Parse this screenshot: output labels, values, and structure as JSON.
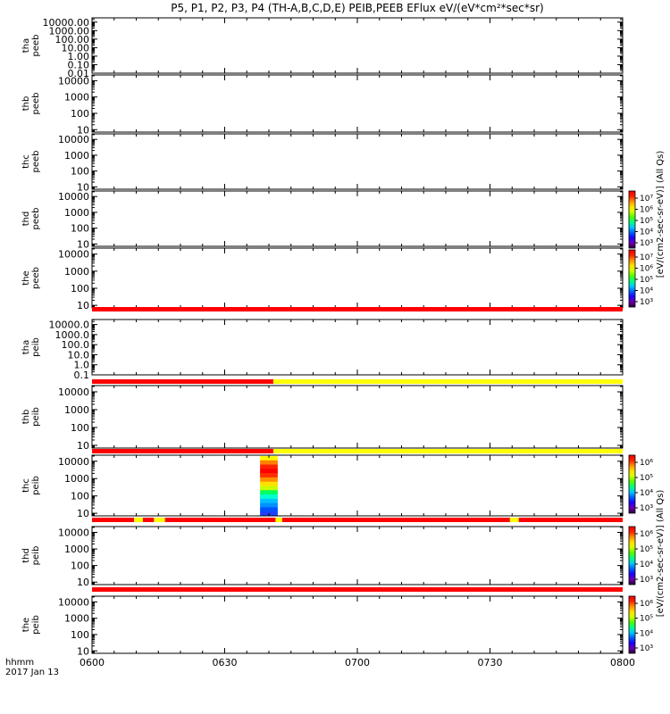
{
  "title": "P5, P1, P2, P3, P4 (TH-A,B,C,D,E) PEIB,PEEB EFlux eV/(eV*cm²*sec*sr)",
  "footer": {
    "line1": "hhmm",
    "line2": "2017 Jan 13"
  },
  "colors": {
    "bar_red": "#ff0000",
    "bar_yellow": "#ffff00",
    "colorbar": [
      "#2a0034",
      "#6a00b0",
      "#1a00ff",
      "#0060ff",
      "#00c8ff",
      "#00ff80",
      "#50ff00",
      "#d0ff00",
      "#ffe000",
      "#ff9000",
      "#ff2000",
      "#ee0000"
    ]
  },
  "chart_data": {
    "type": "heatmap",
    "x_ticks": [
      "0600",
      "0630",
      "0700",
      "0730",
      "0800"
    ],
    "x_range_minutes": [
      0,
      120
    ],
    "panels": [
      {
        "label": "tha\npeeb",
        "yticks": [
          "10000.00",
          "1000.00",
          "100.00",
          "10.00",
          "1.00",
          "0.10",
          "0.01"
        ],
        "ylog": [
          -2,
          4.5
        ]
      },
      {
        "label": "thb\npeeb",
        "yticks": [
          "10000",
          "1000",
          "100",
          "10"
        ],
        "ylog": [
          0.85,
          4.35
        ]
      },
      {
        "label": "thc\npeeb",
        "yticks": [
          "10000",
          "1000",
          "100",
          "10"
        ],
        "ylog": [
          0.85,
          4.35
        ]
      },
      {
        "label": "thd\npeeb",
        "yticks": [
          "10000",
          "1000",
          "100",
          "10"
        ],
        "ylog": [
          0.85,
          4.35
        ]
      },
      {
        "label": "the\npeeb",
        "yticks": [
          "10000",
          "1000",
          "100",
          "10"
        ],
        "ylog": [
          0.85,
          4.35
        ]
      },
      {
        "label": "tha\npeib",
        "yticks": [
          "10000.0",
          "1000.0",
          "100.0",
          "10.0",
          "1.0",
          "0.1"
        ],
        "ylog": [
          -1,
          4.5
        ]
      },
      {
        "label": "thb\npeib",
        "yticks": [
          "10000",
          "1000",
          "100",
          "10"
        ],
        "ylog": [
          0.85,
          4.35
        ]
      },
      {
        "label": "thc\npeib",
        "yticks": [
          "10000",
          "1000",
          "100",
          "10"
        ],
        "ylog": [
          0.85,
          4.35
        ],
        "spectrogram": {
          "x_minutes": [
            38,
            42
          ],
          "ylog_top": 4.3,
          "ylog_bottom": 0.85
        }
      },
      {
        "label": "thd\npeib",
        "yticks": [
          "10000",
          "1000",
          "100",
          "10"
        ],
        "ylog": [
          0.85,
          4.35
        ]
      },
      {
        "label": "the\npeib",
        "yticks": [
          "10000",
          "1000",
          "100",
          "10"
        ],
        "ylog": [
          0.85,
          4.35
        ]
      }
    ],
    "status_bars": [
      {
        "after_panel": 4,
        "segments": [
          {
            "from": 0,
            "to": 120,
            "color": "red"
          }
        ]
      },
      {
        "after_panel": 5,
        "segments": [
          {
            "from": 0,
            "to": 41,
            "color": "red"
          },
          {
            "from": 41,
            "to": 120,
            "color": "yellow"
          }
        ]
      },
      {
        "after_panel": 6,
        "segments": [
          {
            "from": 0,
            "to": 41,
            "color": "red"
          },
          {
            "from": 41,
            "to": 120,
            "color": "yellow"
          }
        ]
      },
      {
        "after_panel": 7,
        "segments": [
          {
            "from": 0,
            "to": 120,
            "color": "red"
          },
          {
            "from": 9.5,
            "to": 11.5,
            "color": "yellow"
          },
          {
            "from": 14,
            "to": 16.5,
            "color": "yellow"
          },
          {
            "from": 41.5,
            "to": 43,
            "color": "yellow"
          },
          {
            "from": 94.5,
            "to": 96.5,
            "color": "yellow"
          }
        ]
      },
      {
        "after_panel": 8,
        "segments": [
          {
            "from": 0,
            "to": 120,
            "color": "red"
          }
        ]
      }
    ],
    "colorbars": [
      {
        "label": "[eV/(cm2-sec-sr-eV)] (All Qs)",
        "ticks": [
          "10⁷",
          "10⁶",
          "10⁵",
          "10⁴",
          "10³"
        ],
        "top_panel": 3,
        "bottom_panel": 4
      },
      {
        "label": "[eV/(cm2-sec-sr-eV)] (All Qs)",
        "ticks": [
          "10⁶",
          "10⁵",
          "10⁴",
          "10³"
        ],
        "top_panel": 7,
        "bottom_panel": 9
      }
    ]
  }
}
